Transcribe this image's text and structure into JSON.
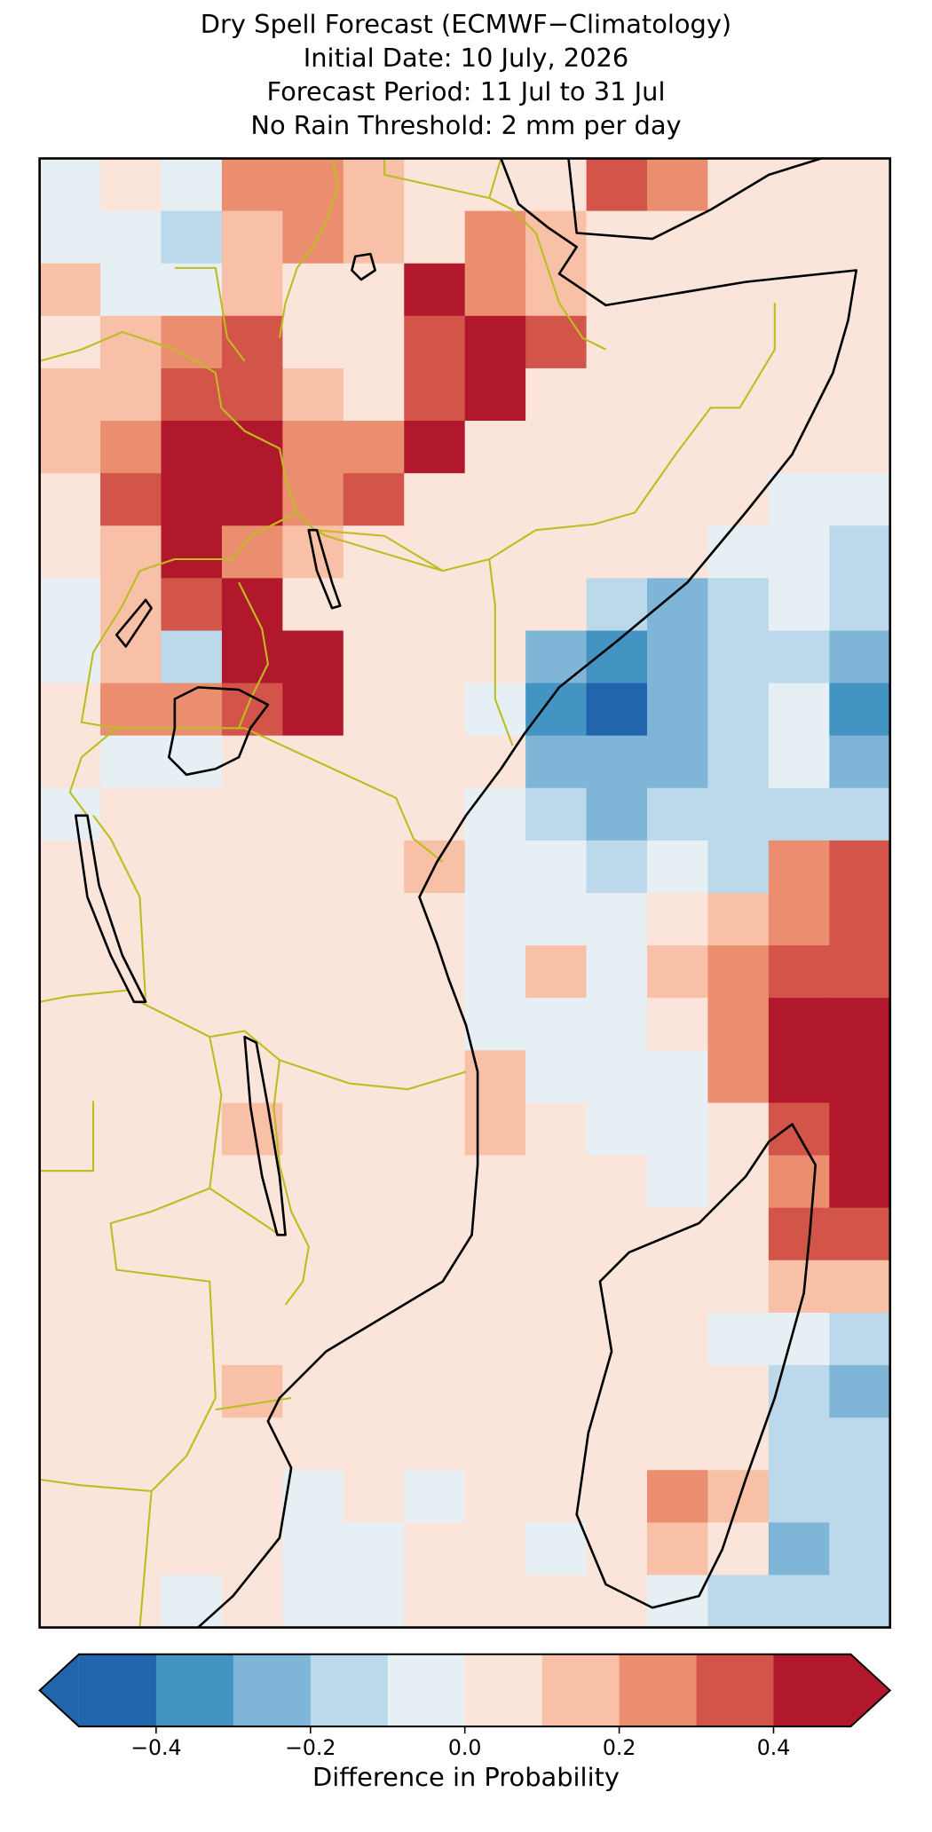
{
  "chart_data": {
    "type": "gridmap",
    "title": [
      "Dry Spell Forecast (ECMWF−Climatology)",
      "Initial Date: 10 July, 2026",
      "Forecast Period: 11 Jul to 31 Jul",
      "No Rain Threshold: 2 mm per day"
    ],
    "values": [
      [
        -0.05,
        0.05,
        -0.05,
        0.25,
        0.25,
        0.15,
        0.05,
        0.05,
        0.05,
        0.35,
        0.25,
        0.05,
        0.05,
        0.05
      ],
      [
        -0.05,
        -0.05,
        -0.15,
        0.15,
        0.25,
        0.15,
        0.05,
        0.25,
        0.15,
        0.05,
        0.05,
        0.05,
        0.05,
        0.05
      ],
      [
        0.15,
        -0.05,
        -0.05,
        0.15,
        0.05,
        0.05,
        0.45,
        0.25,
        0.15,
        0.05,
        0.05,
        0.05,
        0.05,
        0.05
      ],
      [
        0.05,
        0.15,
        0.25,
        0.35,
        0.05,
        0.05,
        0.35,
        0.45,
        0.35,
        0.05,
        0.05,
        0.05,
        0.05,
        0.05
      ],
      [
        0.15,
        0.15,
        0.35,
        0.35,
        0.15,
        0.05,
        0.35,
        0.45,
        0.05,
        0.05,
        0.05,
        0.05,
        0.05,
        0.05
      ],
      [
        0.15,
        0.25,
        0.45,
        0.45,
        0.25,
        0.25,
        0.45,
        0.05,
        0.05,
        0.05,
        0.05,
        0.05,
        0.05,
        0.05
      ],
      [
        0.05,
        0.35,
        0.45,
        0.45,
        0.25,
        0.35,
        0.05,
        0.05,
        0.05,
        0.05,
        0.05,
        0.05,
        -0.05,
        -0.05
      ],
      [
        0.05,
        0.15,
        0.45,
        0.25,
        0.15,
        0.05,
        0.05,
        0.05,
        0.05,
        0.05,
        0.05,
        -0.05,
        -0.05,
        -0.15
      ],
      [
        -0.05,
        0.15,
        0.35,
        0.45,
        0.05,
        0.05,
        0.05,
        0.05,
        0.05,
        -0.15,
        -0.25,
        -0.15,
        -0.05,
        -0.15
      ],
      [
        -0.05,
        0.15,
        -0.15,
        0.45,
        0.45,
        0.05,
        0.05,
        0.05,
        -0.25,
        -0.35,
        -0.25,
        -0.15,
        -0.15,
        -0.25
      ],
      [
        0.05,
        0.25,
        0.25,
        0.35,
        0.45,
        0.05,
        0.05,
        -0.05,
        -0.35,
        -0.45,
        -0.25,
        -0.15,
        -0.05,
        -0.35
      ],
      [
        0.05,
        -0.05,
        -0.05,
        0.05,
        0.05,
        0.05,
        0.05,
        0.05,
        -0.25,
        -0.25,
        -0.25,
        -0.15,
        -0.05,
        -0.25
      ],
      [
        -0.05,
        0.05,
        0.05,
        0.05,
        0.05,
        0.05,
        0.05,
        -0.05,
        -0.15,
        -0.25,
        -0.15,
        -0.15,
        -0.15,
        -0.15
      ],
      [
        0.05,
        0.05,
        0.05,
        0.05,
        0.05,
        0.05,
        0.15,
        -0.05,
        -0.05,
        -0.15,
        -0.05,
        -0.15,
        0.25,
        0.35
      ],
      [
        0.05,
        0.05,
        0.05,
        0.05,
        0.05,
        0.05,
        0.05,
        -0.05,
        -0.05,
        -0.05,
        0.05,
        0.15,
        0.25,
        0.35
      ],
      [
        0.05,
        0.05,
        0.05,
        0.05,
        0.05,
        0.05,
        0.05,
        -0.05,
        0.15,
        -0.05,
        0.15,
        0.25,
        0.35,
        0.35
      ],
      [
        0.05,
        0.05,
        0.05,
        0.05,
        0.05,
        0.05,
        0.05,
        -0.05,
        -0.05,
        -0.05,
        0.05,
        0.25,
        0.45,
        0.45
      ],
      [
        0.05,
        0.05,
        0.05,
        0.05,
        0.05,
        0.05,
        0.05,
        0.15,
        -0.05,
        -0.05,
        -0.05,
        0.25,
        0.45,
        0.45
      ],
      [
        0.05,
        0.05,
        0.05,
        0.15,
        0.05,
        0.05,
        0.05,
        0.15,
        0.05,
        -0.05,
        -0.05,
        0.05,
        0.35,
        0.45
      ],
      [
        0.05,
        0.05,
        0.05,
        0.05,
        0.05,
        0.05,
        0.05,
        0.05,
        0.05,
        0.05,
        -0.05,
        0.05,
        0.25,
        0.45
      ],
      [
        0.05,
        0.05,
        0.05,
        0.05,
        0.05,
        0.05,
        0.05,
        0.05,
        0.05,
        0.05,
        0.05,
        0.05,
        0.35,
        0.35
      ],
      [
        0.05,
        0.05,
        0.05,
        0.05,
        0.05,
        0.05,
        0.05,
        0.05,
        0.05,
        0.05,
        0.05,
        0.05,
        0.15,
        0.15
      ],
      [
        0.05,
        0.05,
        0.05,
        0.05,
        0.05,
        0.05,
        0.05,
        0.05,
        0.05,
        0.05,
        0.05,
        -0.05,
        -0.05,
        -0.15
      ],
      [
        0.05,
        0.05,
        0.05,
        0.15,
        0.05,
        0.05,
        0.05,
        0.05,
        0.05,
        0.05,
        0.05,
        0.05,
        -0.15,
        -0.25
      ],
      [
        0.05,
        0.05,
        0.05,
        0.05,
        0.05,
        0.05,
        0.05,
        0.05,
        0.05,
        0.05,
        0.05,
        0.05,
        -0.15,
        -0.15
      ],
      [
        0.05,
        0.05,
        0.05,
        0.05,
        -0.05,
        0.05,
        -0.05,
        0.05,
        0.05,
        0.05,
        0.25,
        0.15,
        -0.15,
        -0.15
      ],
      [
        0.05,
        0.05,
        0.05,
        0.05,
        -0.05,
        -0.05,
        0.05,
        0.05,
        -0.05,
        0.05,
        0.15,
        0.05,
        -0.25,
        -0.15
      ],
      [
        0.05,
        0.05,
        -0.05,
        0.05,
        -0.05,
        -0.05,
        0.05,
        0.05,
        0.05,
        0.05,
        -0.05,
        -0.15,
        -0.15,
        -0.15
      ]
    ],
    "colorbar": {
      "label": "Difference in Probability",
      "xlim": [
        -0.5,
        0.5
      ],
      "bounds": [
        -0.5,
        -0.4,
        -0.3,
        -0.2,
        -0.1,
        0,
        0.1,
        0.2,
        0.3,
        0.4,
        0.5
      ],
      "colors": [
        "#2166ac",
        "#4393c3",
        "#7fb6d8",
        "#bbd9ea",
        "#e6eff4",
        "#fbe5da",
        "#f8c0a6",
        "#eb8e70",
        "#d35448",
        "#b2182b"
      ],
      "extend": "both",
      "xticks": [
        {
          "value": -0.4,
          "label": "−0.4"
        },
        {
          "value": -0.2,
          "label": "−0.2"
        },
        {
          "value": 0,
          "label": "0.0"
        },
        0.2,
        0.4
      ]
    }
  }
}
